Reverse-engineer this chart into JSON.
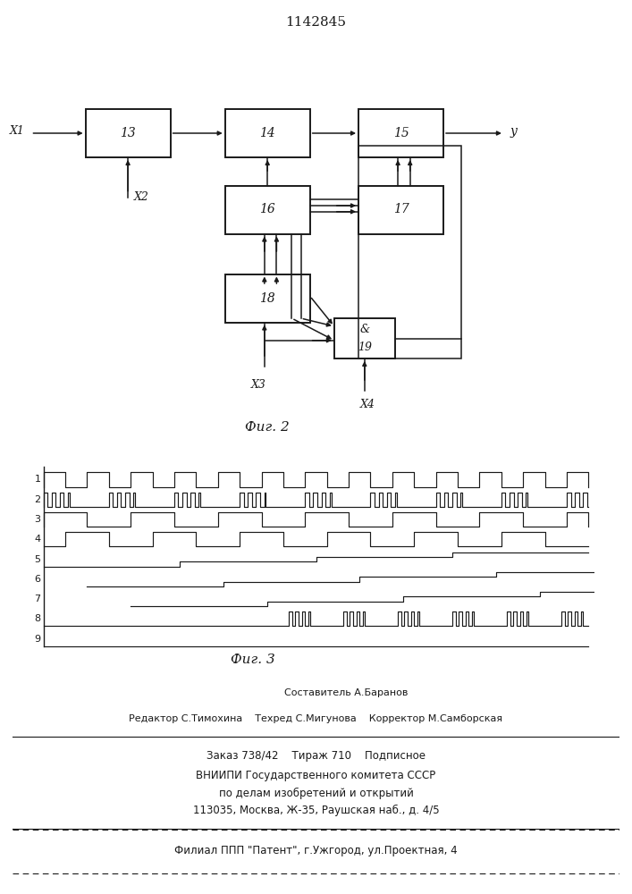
{
  "title": "1142845",
  "fig2_caption": "Фиг. 2",
  "fig3_caption": "Фиг. 3",
  "bg_color": "#ffffff",
  "line_color": "#1a1a1a",
  "footer_line1": "Составитель А.Баранов",
  "footer_line2": "Редактор С.Тимохина    Техред С.Мигунова    Корректор М.Самборская",
  "footer_line3": "Заказ 738/42    Тираж 710    Подписное",
  "footer_line4": "ВНИИПИ Государственного комитета СССР",
  "footer_line5": "по делам изобретений и открытий",
  "footer_line6": "113035, Москва, Ж-35, Раушская наб., д. 4/5",
  "footer_line7": "Филиал ППП \"Патент\", г.Ужгород, ул.Проектная, 4"
}
